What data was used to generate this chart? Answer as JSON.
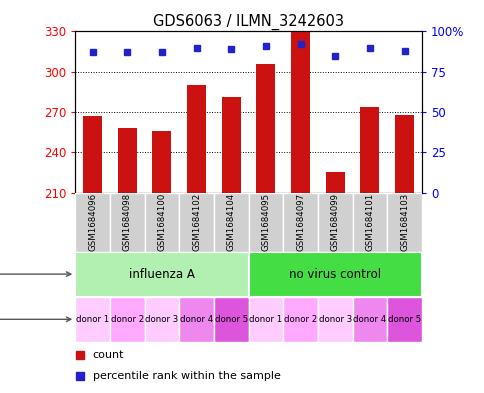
{
  "title": "GDS6063 / ILMN_3242603",
  "samples": [
    "GSM1684096",
    "GSM1684098",
    "GSM1684100",
    "GSM1684102",
    "GSM1684104",
    "GSM1684095",
    "GSM1684097",
    "GSM1684099",
    "GSM1684101",
    "GSM1684103"
  ],
  "counts": [
    267,
    258,
    256,
    290,
    281,
    306,
    330,
    225,
    274,
    268
  ],
  "percentiles": [
    87,
    87,
    87,
    90,
    89,
    91,
    92,
    85,
    90,
    88
  ],
  "ylim_left": [
    210,
    330
  ],
  "ylim_right": [
    0,
    100
  ],
  "yticks_left": [
    210,
    240,
    270,
    300,
    330
  ],
  "yticks_right": [
    0,
    25,
    50,
    75,
    100
  ],
  "infection_groups": [
    {
      "label": "influenza A",
      "start": 0,
      "end": 5,
      "color": "#b2f0b2"
    },
    {
      "label": "no virus control",
      "start": 5,
      "end": 10,
      "color": "#44dd44"
    }
  ],
  "individual_labels": [
    "donor 1",
    "donor 2",
    "donor 3",
    "donor 4",
    "donor 5",
    "donor 1",
    "donor 2",
    "donor 3",
    "donor 4",
    "donor 5"
  ],
  "individual_colors": [
    "#ffccff",
    "#ffaaff",
    "#ffccff",
    "#ee88ee",
    "#dd55dd",
    "#ffccff",
    "#ffaaff",
    "#ffccff",
    "#ee88ee",
    "#dd55dd"
  ],
  "bar_color": "#cc1111",
  "dot_color": "#2222cc",
  "bar_width": 0.55,
  "sample_box_color": "#d0d0d0",
  "legend_count_color": "#cc1111",
  "legend_pct_color": "#2222cc"
}
